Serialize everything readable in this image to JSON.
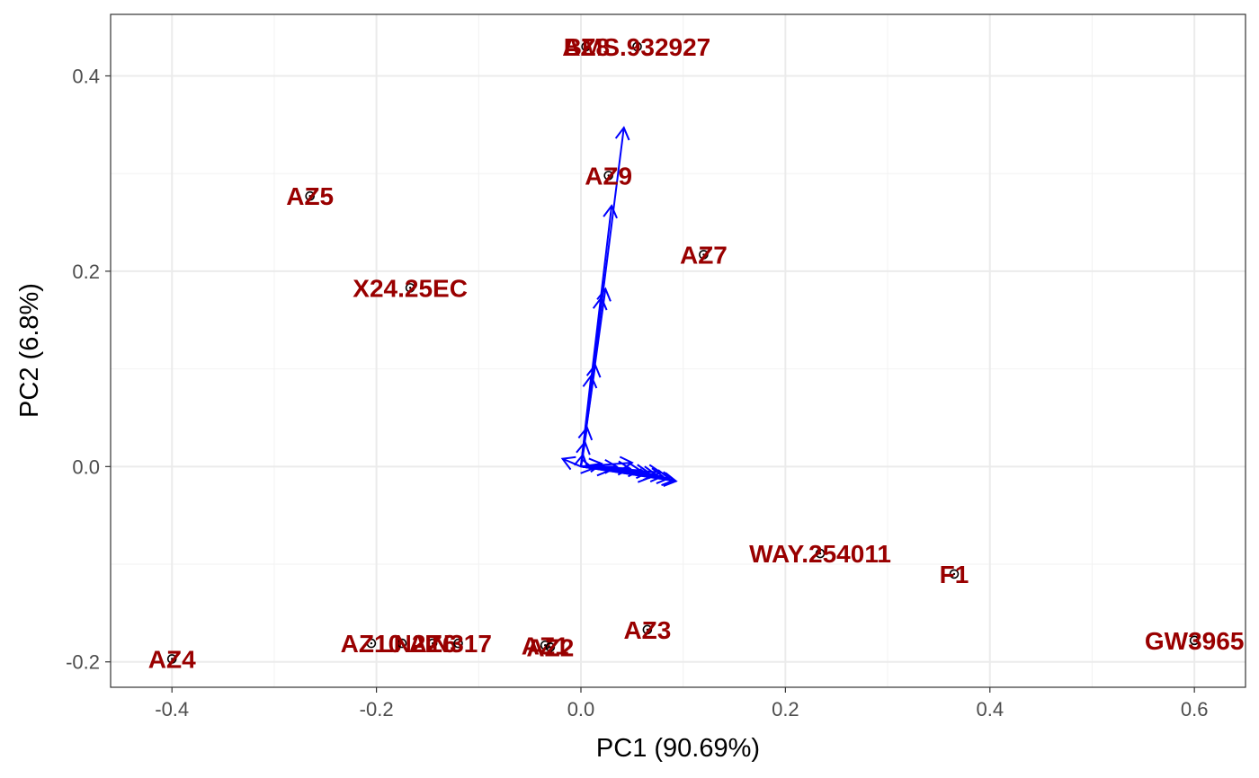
{
  "chart_data": {
    "type": "scatter",
    "title": "",
    "xlabel": "PC1 (90.69%)",
    "ylabel": "PC2 (6.8%)",
    "xlim": [
      -0.46,
      0.65
    ],
    "ylim": [
      -0.226,
      0.463
    ],
    "xticks": [
      -0.4,
      -0.2,
      0.0,
      0.2,
      0.4,
      0.6
    ],
    "xtick_labels": [
      "-0.4",
      "-0.2",
      "0.0",
      "0.2",
      "0.4",
      "0.6"
    ],
    "yticks": [
      -0.2,
      0.0,
      0.2,
      0.4
    ],
    "ytick_labels": [
      "-0.2",
      "0.0",
      "0.2",
      "0.4"
    ],
    "grid": true,
    "label_color": "#990000",
    "arrow_color": "#0000ff",
    "points": [
      {
        "label": "AZ4",
        "x": -0.4,
        "y": -0.197
      },
      {
        "label": "AZ5",
        "x": -0.265,
        "y": 0.277
      },
      {
        "label": "X24.25EC",
        "x": -0.167,
        "y": 0.183
      },
      {
        "label": "AZ10",
        "x": -0.205,
        "y": -0.181
      },
      {
        "label": "LN2",
        "x": -0.175,
        "y": -0.181
      },
      {
        "label": "AZ6",
        "x": -0.145,
        "y": -0.181
      },
      {
        "label": "IN317",
        "x": -0.12,
        "y": -0.181
      },
      {
        "label": "AZ1",
        "x": -0.035,
        "y": -0.183
      },
      {
        "label": "AZ2",
        "x": -0.03,
        "y": -0.185
      },
      {
        "label": "AZ8",
        "x": 0.005,
        "y": 0.43
      },
      {
        "label": "BMS.932927",
        "x": 0.055,
        "y": 0.43
      },
      {
        "label": "AZ9",
        "x": 0.027,
        "y": 0.298
      },
      {
        "label": "AZ7",
        "x": 0.12,
        "y": 0.217
      },
      {
        "label": "AZ3",
        "x": 0.065,
        "y": -0.167
      },
      {
        "label": "WAY.254011",
        "x": 0.234,
        "y": -0.089
      },
      {
        "label": "F1",
        "x": 0.365,
        "y": -0.11
      },
      {
        "label": "GW3965",
        "x": 0.6,
        "y": -0.178
      }
    ],
    "loadings": [
      {
        "x": 0.042,
        "y": 0.347
      },
      {
        "x": 0.03,
        "y": 0.267
      },
      {
        "x": 0.024,
        "y": 0.182
      },
      {
        "x": 0.02,
        "y": 0.173
      },
      {
        "x": 0.014,
        "y": 0.104
      },
      {
        "x": 0.01,
        "y": 0.093
      },
      {
        "x": 0.006,
        "y": 0.04
      },
      {
        "x": 0.004,
        "y": 0.025
      },
      {
        "x": 0.002,
        "y": 0.012
      },
      {
        "x": -0.018,
        "y": 0.008
      },
      {
        "x": 0.02,
        "y": 0.003
      },
      {
        "x": 0.035,
        "y": 0.0
      },
      {
        "x": 0.048,
        "y": -0.002
      },
      {
        "x": 0.058,
        "y": -0.004
      },
      {
        "x": 0.066,
        "y": -0.006
      },
      {
        "x": 0.073,
        "y": -0.008
      },
      {
        "x": 0.08,
        "y": -0.01
      },
      {
        "x": 0.086,
        "y": -0.012
      },
      {
        "x": 0.091,
        "y": -0.014
      },
      {
        "x": 0.093,
        "y": -0.015
      },
      {
        "x": 0.028,
        "y": -0.004
      },
      {
        "x": 0.05,
        "y": 0.004
      },
      {
        "x": 0.068,
        "y": -0.011
      },
      {
        "x": 0.078,
        "y": -0.006
      },
      {
        "x": 0.012,
        "y": -0.002
      }
    ]
  }
}
